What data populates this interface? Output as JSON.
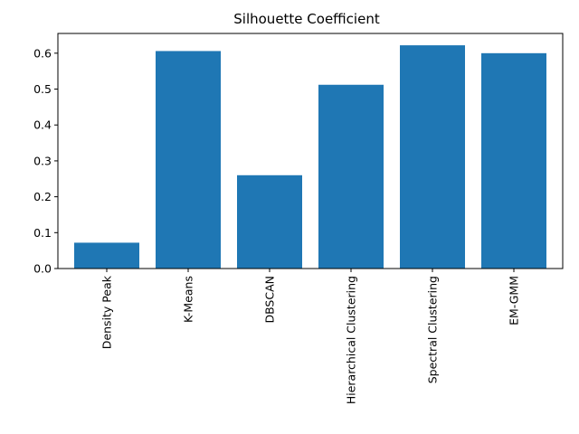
{
  "chart_data": {
    "type": "bar",
    "title": "Silhouette Coefficient",
    "xlabel": "",
    "ylabel": "",
    "categories": [
      "Density Peak",
      "K-Means",
      "DBSCAN",
      "Hierarchical Clustering",
      "Spectral Clustering",
      "EM-GMM"
    ],
    "values": [
      0.072,
      0.606,
      0.26,
      0.512,
      0.622,
      0.6
    ],
    "ylim": [
      0,
      0.655
    ],
    "yticks": [
      0.0,
      0.1,
      0.2,
      0.3,
      0.4,
      0.5,
      0.6
    ],
    "ytick_labels": [
      "0.0",
      "0.1",
      "0.2",
      "0.3",
      "0.4",
      "0.5",
      "0.6"
    ],
    "bar_color": "#1f77b4",
    "grid": false,
    "legend": "none"
  }
}
